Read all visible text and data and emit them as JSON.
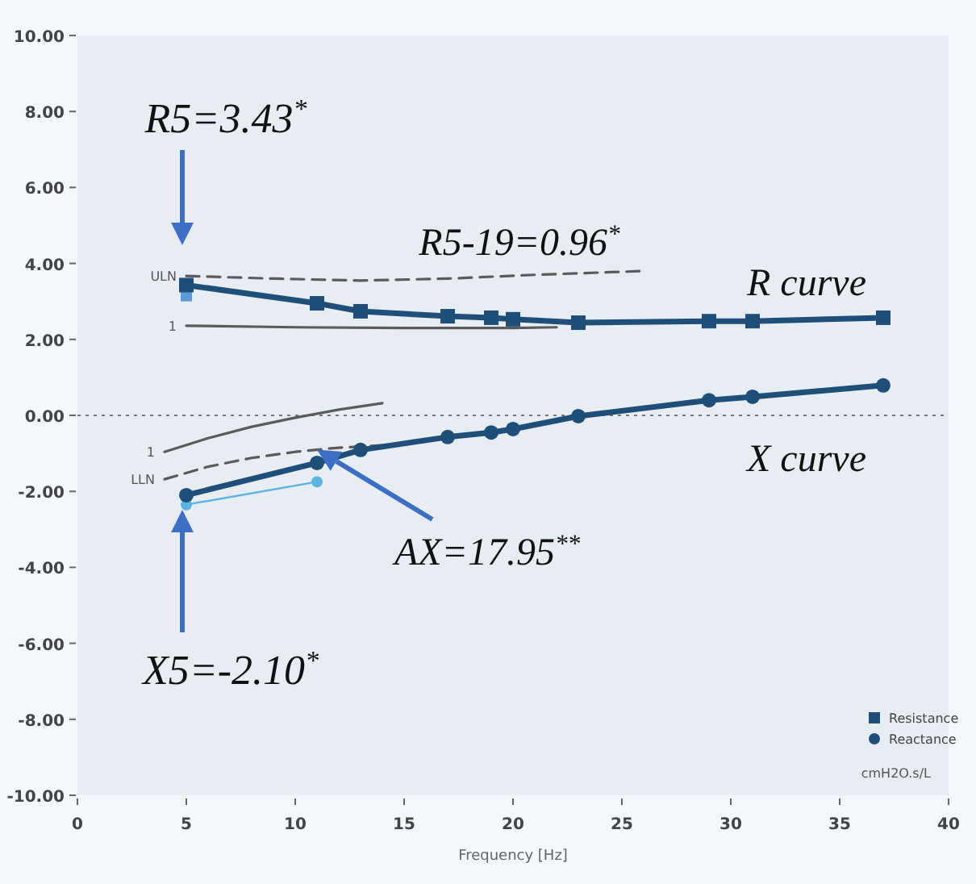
{
  "chart_data": {
    "type": "line",
    "xlabel": "Frequency [Hz]",
    "xlim": [
      0,
      40
    ],
    "xticks": [
      0,
      5,
      10,
      15,
      20,
      25,
      30,
      35,
      40
    ],
    "ylim": [
      -10,
      10
    ],
    "yticks": [
      {
        "value": -10,
        "label": "-10.00"
      },
      {
        "value": -8,
        "label": "-8.00"
      },
      {
        "value": -6,
        "label": "-6.00"
      },
      {
        "value": -4,
        "label": "-4.00"
      },
      {
        "value": -2,
        "label": "-2.00"
      },
      {
        "value": 0,
        "label": "0.00"
      },
      {
        "value": 2,
        "label": "2.00"
      },
      {
        "value": 4,
        "label": "4.00"
      },
      {
        "value": 6,
        "label": "6.00"
      },
      {
        "value": 8,
        "label": "8.00"
      },
      {
        "value": 10,
        "label": "10.00"
      }
    ],
    "grid": false,
    "legend": "bottom right",
    "line_style": "solid",
    "series": [
      {
        "name": "ULN",
        "color": "#5a5a5a",
        "x": [
          5,
          9,
          13,
          17,
          21,
          26
        ],
        "values": [
          3.67,
          3.6,
          3.55,
          3.6,
          3.7,
          3.8
        ],
        "marker": "none",
        "line_style": "dashed"
      },
      {
        "name": "1",
        "color": "#5a5a5a",
        "x": [
          5,
          10,
          15,
          20,
          22
        ],
        "values": [
          2.36,
          2.32,
          2.3,
          2.3,
          2.32
        ],
        "marker": "none",
        "line_style": "solid"
      },
      {
        "name": "1",
        "color": "#5a5a5a",
        "x": [
          4,
          6,
          8,
          10,
          12,
          14
        ],
        "values": [
          -0.96,
          -0.6,
          -0.3,
          -0.06,
          0.15,
          0.32
        ],
        "marker": "none",
        "line_style": "solid"
      },
      {
        "name": "LLN",
        "color": "#5a5a5a",
        "x": [
          4,
          6,
          8,
          10,
          12,
          14
        ],
        "values": [
          -1.68,
          -1.35,
          -1.12,
          -0.96,
          -0.85,
          -0.79
        ],
        "marker": "none",
        "line_style": "dashed"
      },
      {
        "color": "#5b9bd5",
        "x": [
          5
        ],
        "values": [
          3.15
        ],
        "marker": "square"
      },
      {
        "color": "#5ab4e0",
        "x": [
          5,
          11
        ],
        "values": [
          -2.35,
          -1.75
        ],
        "marker": "circle"
      },
      {
        "name": "Resistance",
        "color": "#1f4e79",
        "x": [
          5,
          11,
          13,
          17,
          19,
          20,
          23,
          29,
          31,
          37
        ],
        "values": [
          3.43,
          2.95,
          2.74,
          2.61,
          2.57,
          2.53,
          2.44,
          2.48,
          2.48,
          2.57
        ],
        "marker": "square"
      },
      {
        "name": "Reactance",
        "color": "#1f4e79",
        "x": [
          5,
          11,
          13,
          17,
          19,
          20,
          23,
          29,
          31,
          37
        ],
        "values": [
          -2.1,
          -1.25,
          -0.91,
          -0.57,
          -0.45,
          -0.36,
          -0.02,
          0.4,
          0.49,
          0.79
        ],
        "marker": "circle"
      }
    ],
    "ref_lines": [
      {
        "axis": "y",
        "value": 0,
        "color": "#777777",
        "line_style": "dotted"
      }
    ],
    "annotations": [
      "R5=3.43$^{*}$",
      "R5-19=0.96$^{*}$",
      "R curve",
      "X curve",
      {
        "text": "AX=17.95$^{**}$",
        "x": 11,
        "y": -0.9
      },
      "X5=-2.10$^{*}$",
      "cmH2O.s/L"
    ]
  }
}
